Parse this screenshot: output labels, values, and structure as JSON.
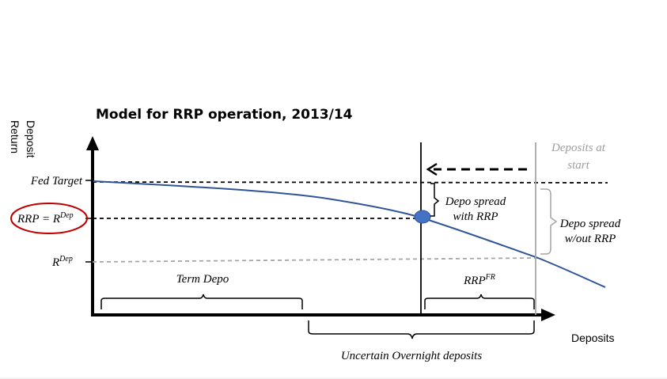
{
  "title": "Model for RRP operation, 2013/14",
  "y_axis_label_line1": "Deposit",
  "y_axis_label_line2": "Return",
  "x_axis_label": "Deposits",
  "y_ticks": {
    "fed_target": "Fed Target",
    "rrp_eq": "RRP = R",
    "rrp_eq_sup": "Dep",
    "r_dep": "R",
    "r_dep_sup": "Dep"
  },
  "labels": {
    "deposits_at_start_1": "Deposits at",
    "deposits_at_start_2": "start",
    "depo_spread_rrp_1": "Depo spread",
    "depo_spread_rrp_2": "with RRP",
    "depo_spread_norrp_1": "Depo spread",
    "depo_spread_norrp_2": "w/out RRP",
    "term_depo": "Term Depo",
    "rrp_fr": "RRP",
    "rrp_fr_sup": "FR",
    "uncertain_overnight": "Uncertain Overnight deposits"
  },
  "colors": {
    "curve": "#2f5597",
    "equilibrium_dot": "#4472c4",
    "highlight_ellipse": "#c00000",
    "gray": "#a6a6a6",
    "gray_text": "#9e9e9e"
  }
}
